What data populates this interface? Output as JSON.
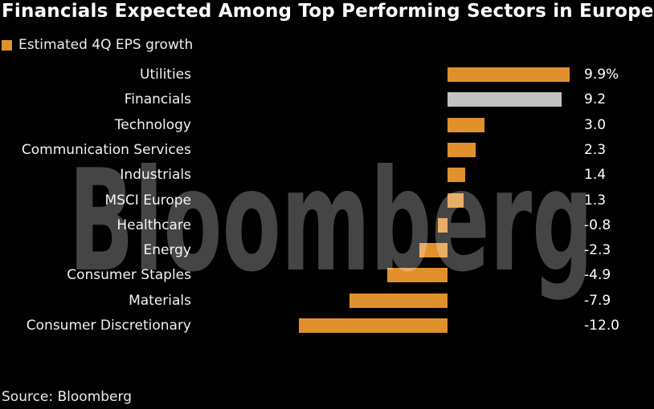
{
  "header": {
    "title": "Financials Expected Among Top Performing Sectors in Europe"
  },
  "legend": {
    "label": "Estimated 4Q EPS growth"
  },
  "watermark": {
    "text": "Bloomberg"
  },
  "footer": {
    "source": "Source: Bloomberg"
  },
  "colors": {
    "background": "#000000",
    "bar_default": "#E0912E",
    "bar_highlight": "#C2C2C2",
    "title_text": "#FFFFFF",
    "label_text": "#F2F2F2",
    "watermark": "rgba(255,255,255,0.27)"
  },
  "chart_data": {
    "type": "bar",
    "orientation": "horizontal",
    "title": "Financials Expected Among Top Performing Sectors in Europe",
    "legend": [
      "Estimated 4Q EPS growth"
    ],
    "legend_position": "top-left",
    "grid": false,
    "xlim": [
      -12.0,
      9.9
    ],
    "xlabel": "",
    "ylabel": "",
    "categories": [
      "Utilities",
      "Financials",
      "Technology",
      "Communication Services",
      "Industrials",
      "MSCI Europe",
      "Healthcare",
      "Energy",
      "Consumer Staples",
      "Materials",
      "Consumer Discretionary"
    ],
    "values": [
      9.9,
      9.2,
      3.0,
      2.3,
      1.4,
      1.3,
      -0.8,
      -2.3,
      -4.9,
      -7.9,
      -12.0
    ],
    "value_labels": [
      "9.9%",
      "9.2",
      "3.0",
      "2.3",
      "1.4",
      "1.3",
      "-0.8",
      "-2.3",
      "-4.9",
      "-7.9",
      "-12.0"
    ],
    "highlighted_category": "Financials",
    "source": "Source: Bloomberg",
    "watermark": "Bloomberg"
  }
}
